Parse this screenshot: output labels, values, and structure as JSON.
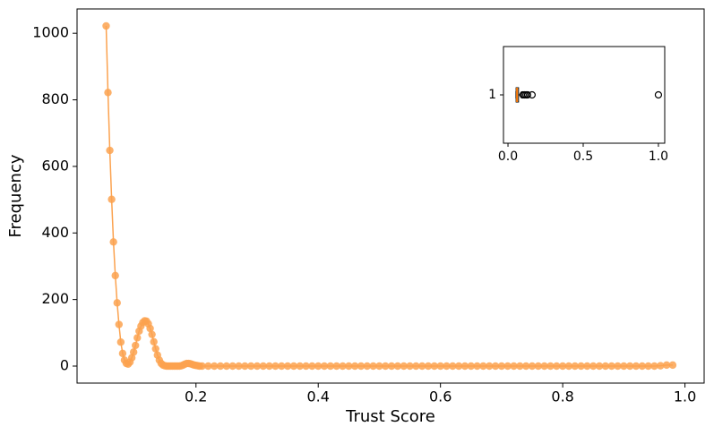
{
  "chart_data": [
    {
      "type": "line",
      "xlabel": "Trust Score",
      "ylabel": "Frequency",
      "color": "#fba24f",
      "x": [
        0.053,
        0.056,
        0.059,
        0.062,
        0.065,
        0.068,
        0.071,
        0.074,
        0.077,
        0.08,
        0.083,
        0.086,
        0.089,
        0.092,
        0.095,
        0.098,
        0.101,
        0.104,
        0.107,
        0.11,
        0.113,
        0.116,
        0.119,
        0.122,
        0.125,
        0.128,
        0.131,
        0.134,
        0.137,
        0.14,
        0.143,
        0.146,
        0.149,
        0.152,
        0.155,
        0.158,
        0.161,
        0.164,
        0.167,
        0.17,
        0.173,
        0.176,
        0.179,
        0.182,
        0.185,
        0.188,
        0.191,
        0.194,
        0.197,
        0.2,
        0.203,
        0.206,
        0.21,
        0.22,
        0.23,
        0.24,
        0.25,
        0.26,
        0.27,
        0.28,
        0.29,
        0.3,
        0.31,
        0.32,
        0.33,
        0.34,
        0.35,
        0.36,
        0.37,
        0.38,
        0.39,
        0.4,
        0.41,
        0.42,
        0.43,
        0.44,
        0.45,
        0.46,
        0.47,
        0.48,
        0.49,
        0.5,
        0.51,
        0.52,
        0.53,
        0.54,
        0.55,
        0.56,
        0.57,
        0.58,
        0.59,
        0.6,
        0.61,
        0.62,
        0.63,
        0.64,
        0.65,
        0.66,
        0.67,
        0.68,
        0.69,
        0.7,
        0.71,
        0.72,
        0.73,
        0.74,
        0.75,
        0.76,
        0.77,
        0.78,
        0.79,
        0.8,
        0.81,
        0.82,
        0.83,
        0.84,
        0.85,
        0.86,
        0.87,
        0.88,
        0.89,
        0.9,
        0.91,
        0.92,
        0.93,
        0.94,
        0.95,
        0.96,
        0.97,
        0.98
      ],
      "values": [
        1022,
        822,
        648,
        501,
        373,
        272,
        190,
        125,
        72,
        38,
        18,
        8,
        6,
        12,
        25,
        42,
        62,
        85,
        105,
        120,
        131,
        136,
        135,
        127,
        113,
        95,
        73,
        52,
        33,
        18,
        8,
        3,
        1,
        0,
        0,
        0,
        0,
        0,
        0,
        0,
        0,
        1,
        3,
        6,
        8,
        8,
        7,
        5,
        3,
        2,
        1,
        0,
        0,
        0,
        0,
        0,
        0,
        0,
        0,
        0,
        0,
        0,
        0,
        0,
        0,
        0,
        0,
        0,
        0,
        0,
        0,
        0,
        0,
        0,
        0,
        0,
        0,
        0,
        0,
        0,
        0,
        0,
        0,
        0,
        0,
        0,
        0,
        0,
        0,
        0,
        0,
        0,
        0,
        0,
        0,
        0,
        0,
        0,
        0,
        0,
        0,
        0,
        0,
        0,
        0,
        0,
        0,
        0,
        0,
        0,
        0,
        0,
        0,
        0,
        0,
        0,
        0,
        0,
        0,
        0,
        0,
        0,
        0,
        0,
        0,
        0,
        0,
        1,
        3,
        3
      ],
      "xlim": [
        0.0054,
        1.0314
      ],
      "ylim": [
        -51.1,
        1073.1
      ],
      "xticks": [
        0.2,
        0.4,
        0.6,
        0.8,
        {
          "value": 1.0,
          "label": "1.0"
        }
      ],
      "yticks": [
        0,
        200,
        400,
        600,
        800,
        1000
      ]
    },
    {
      "type": "box",
      "categories": [
        "1"
      ],
      "median_color": "#ff7f0e",
      "whislo": 0.053,
      "q1": 0.054,
      "med": 0.06,
      "q3": 0.07,
      "whishi": 0.09,
      "fliers": [
        0.1,
        0.11,
        0.12,
        0.13,
        0.16,
        1.0
      ],
      "xlim": [
        -0.03,
        1.042
      ],
      "xticks": [
        {
          "value": 0.0,
          "label": "0.0"
        },
        0.5,
        {
          "value": 1.0,
          "label": "1.0"
        }
      ]
    }
  ]
}
